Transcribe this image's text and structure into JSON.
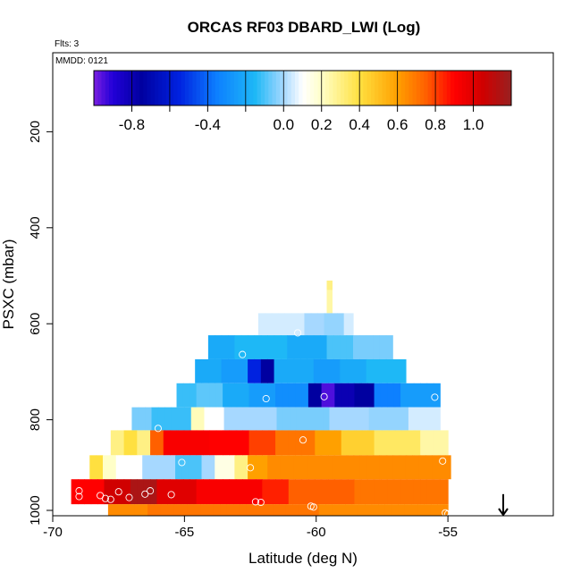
{
  "chart_data": {
    "type": "heatmap",
    "title": "ORCAS RF03 DBARD_LWI (Log)",
    "info": {
      "flights": "Flts: 3",
      "date": "MMDD: 0121"
    },
    "xlabel": "Latitude (deg N)",
    "ylabel": "PSXC (mbar)",
    "xlim": [
      -70,
      -51
    ],
    "ylim": [
      1000,
      0
    ],
    "xticks": [
      {
        "value": -70,
        "label": "-70"
      },
      {
        "value": -65,
        "label": "-65"
      },
      {
        "value": -60,
        "label": "-60"
      },
      {
        "value": -55,
        "label": "-55"
      }
    ],
    "yticks": [
      {
        "value": 200,
        "label": "200"
      },
      {
        "value": 400,
        "label": "400"
      },
      {
        "value": 600,
        "label": "600"
      },
      {
        "value": 800,
        "label": "800"
      },
      {
        "value": 1000,
        "label": "1000"
      }
    ],
    "colorbar": {
      "range": [
        -1.0,
        1.2
      ],
      "stops": [
        {
          "v": -1.0,
          "c": "#7a1fe0"
        },
        {
          "v": -0.9,
          "c": "#2200d8"
        },
        {
          "v": -0.75,
          "c": "#0000a0"
        },
        {
          "v": -0.55,
          "c": "#0022e0"
        },
        {
          "v": -0.35,
          "c": "#0d80ff"
        },
        {
          "v": -0.15,
          "c": "#1eb8f6"
        },
        {
          "v": 0.0,
          "c": "#a6d8ff"
        },
        {
          "v": 0.1,
          "c": "#ffffff"
        },
        {
          "v": 0.2,
          "c": "#ffffc8"
        },
        {
          "v": 0.4,
          "c": "#ffe040"
        },
        {
          "v": 0.6,
          "c": "#ffa000"
        },
        {
          "v": 0.75,
          "c": "#ff6000"
        },
        {
          "v": 0.9,
          "c": "#ff0000"
        },
        {
          "v": 1.05,
          "c": "#d00000"
        },
        {
          "v": 1.2,
          "c": "#982020"
        }
      ],
      "tick_labels": [
        {
          "value": -0.8,
          "label": "-0.8"
        },
        {
          "value": -0.4,
          "label": "-0.4"
        },
        {
          "value": 0.0,
          "label": "0.0"
        },
        {
          "value": 0.2,
          "label": "0.2"
        },
        {
          "value": 0.4,
          "label": "0.4"
        },
        {
          "value": 0.6,
          "label": "0.6"
        },
        {
          "value": 0.8,
          "label": "0.8"
        },
        {
          "value": 1.0,
          "label": "1.0"
        }
      ],
      "separators": [
        -0.8,
        -0.6,
        -0.4,
        -0.2,
        0.0,
        0.2,
        0.4,
        0.6,
        0.8,
        1.0
      ],
      "minor_ticks": [
        -0.6,
        -0.2
      ]
    },
    "rows": [
      {
        "p_top": 510,
        "p_bot": 530,
        "lat_start": -59.6,
        "lat_end": -59.4,
        "segments": [
          [
            -59.6,
            0.3
          ]
        ]
      },
      {
        "p_top": 530,
        "p_bot": 578,
        "lat_start": -59.6,
        "lat_end": -59.4,
        "segments": [
          [
            -59.6,
            0.25
          ]
        ]
      },
      {
        "p_top": 578,
        "p_bot": 624,
        "lat_start": -62.2,
        "lat_end": -58.6,
        "segments": [
          [
            -62.2,
            0.05
          ],
          [
            -60.5,
            0.0
          ],
          [
            -59.8,
            -0.02
          ],
          [
            -59.0,
            0.05
          ]
        ]
      },
      {
        "p_top": 624,
        "p_bot": 674,
        "lat_start": -64.1,
        "lat_end": -57.1,
        "segments": [
          [
            -64.1,
            -0.2
          ],
          [
            -63.0,
            -0.15
          ],
          [
            -61.0,
            -0.2
          ],
          [
            -59.5,
            -0.1
          ],
          [
            -58.5,
            -0.05
          ]
        ]
      },
      {
        "p_top": 674,
        "p_bot": 724,
        "lat_start": -64.6,
        "lat_end": -56.6,
        "segments": [
          [
            -64.6,
            -0.2
          ],
          [
            -63.5,
            -0.25
          ],
          [
            -62.7,
            -0.55
          ],
          [
            -62.0,
            -0.75
          ],
          [
            -61.6,
            -0.2
          ],
          [
            -60.0,
            -0.25
          ],
          [
            -59.0,
            -0.2
          ],
          [
            -58.0,
            -0.15
          ]
        ]
      },
      {
        "p_top": 724,
        "p_bot": 774,
        "lat_start": -65.3,
        "lat_end": -55.3,
        "segments": [
          [
            -65.3,
            -0.12
          ],
          [
            -64.5,
            -0.08
          ],
          [
            -63.5,
            -0.2
          ],
          [
            -62.5,
            -0.25
          ],
          [
            -61.5,
            -0.3
          ],
          [
            -60.3,
            -0.75
          ],
          [
            -59.7,
            -0.95
          ],
          [
            -59.3,
            -0.8
          ],
          [
            -58.5,
            -0.75
          ],
          [
            -57.8,
            -0.35
          ],
          [
            -56.8,
            -0.25
          ]
        ]
      },
      {
        "p_top": 774,
        "p_bot": 822,
        "lat_start": -67.0,
        "lat_end": -55.3,
        "segments": [
          [
            -67.0,
            -0.05
          ],
          [
            -66.2,
            -0.12
          ],
          [
            -64.8,
            0.22
          ],
          [
            -64.3,
            0.1
          ],
          [
            -63.5,
            0.0
          ],
          [
            -61.5,
            -0.05
          ],
          [
            -59.5,
            0.0
          ],
          [
            -58.0,
            -0.02
          ],
          [
            -56.5,
            0.05
          ]
        ]
      },
      {
        "p_top": 822,
        "p_bot": 874,
        "lat_start": -67.8,
        "lat_end": -55.0,
        "segments": [
          [
            -67.8,
            0.3
          ],
          [
            -67.3,
            0.4
          ],
          [
            -66.8,
            0.3
          ],
          [
            -66.3,
            0.75
          ],
          [
            -65.8,
            0.92
          ],
          [
            -64.0,
            0.9
          ],
          [
            -62.5,
            0.8
          ],
          [
            -61.5,
            0.7
          ],
          [
            -60.0,
            0.6
          ],
          [
            -59.0,
            0.45
          ],
          [
            -57.8,
            0.35
          ],
          [
            -56.0,
            0.25
          ]
        ]
      },
      {
        "p_top": 874,
        "p_bot": 924,
        "lat_start": -68.6,
        "lat_end": -54.9,
        "segments": [
          [
            -68.6,
            0.4
          ],
          [
            -68.2,
            0.2
          ],
          [
            -67.5,
            0.1
          ],
          [
            -66.5,
            0.0
          ],
          [
            -65.3,
            -0.1
          ],
          [
            -64.4,
            0.0
          ],
          [
            -63.8,
            0.15
          ],
          [
            -63.0,
            0.3
          ],
          [
            -62.6,
            0.6
          ],
          [
            -61.8,
            0.65
          ]
        ]
      },
      {
        "p_top": 924,
        "p_bot": 976,
        "lat_start": -69.3,
        "lat_end": -55.0,
        "segments": [
          [
            -69.3,
            0.9
          ],
          [
            -68.0,
            1.05
          ],
          [
            -67.0,
            1.15
          ],
          [
            -66.0,
            1.0
          ],
          [
            -64.5,
            0.92
          ],
          [
            -62.0,
            0.85
          ],
          [
            -61.0,
            0.75
          ],
          [
            -58.5,
            0.7
          ]
        ]
      },
      {
        "p_top": 976,
        "p_bot": 1000,
        "lat_start": -67.9,
        "lat_end": -55.0,
        "segments": [
          [
            -67.9,
            0.65
          ],
          [
            -66.5,
            0.7
          ],
          [
            -60.0,
            0.65
          ]
        ]
      }
    ],
    "observations": [
      {
        "lat": -64.7,
        "p": 654
      },
      {
        "lat": -62.8,
        "p": 664
      },
      {
        "lat": -60.7,
        "p": 619
      },
      {
        "lat": -61.9,
        "p": 756
      },
      {
        "lat": -59.7,
        "p": 752
      },
      {
        "lat": -55.5,
        "p": 753
      },
      {
        "lat": -66.0,
        "p": 818
      },
      {
        "lat": -60.5,
        "p": 842
      },
      {
        "lat": -65.1,
        "p": 889
      },
      {
        "lat": -62.5,
        "p": 900
      },
      {
        "lat": -55.2,
        "p": 886
      },
      {
        "lat": -69.0,
        "p": 948
      },
      {
        "lat": -69.0,
        "p": 960
      },
      {
        "lat": -68.2,
        "p": 958
      },
      {
        "lat": -68.0,
        "p": 964
      },
      {
        "lat": -67.8,
        "p": 966
      },
      {
        "lat": -67.5,
        "p": 950
      },
      {
        "lat": -67.1,
        "p": 962
      },
      {
        "lat": -66.5,
        "p": 955
      },
      {
        "lat": -66.3,
        "p": 948
      },
      {
        "lat": -65.5,
        "p": 956
      },
      {
        "lat": -62.3,
        "p": 971
      },
      {
        "lat": -62.1,
        "p": 972
      },
      {
        "lat": -60.2,
        "p": 980
      },
      {
        "lat": -60.1,
        "p": 982
      },
      {
        "lat": -55.1,
        "p": 994
      },
      {
        "lat": -55.0,
        "p": 996
      }
    ],
    "arrow_marker": {
      "lat": -52.9,
      "p_from": 955,
      "p_to": 1000,
      "meaning": "flight location marker"
    }
  }
}
